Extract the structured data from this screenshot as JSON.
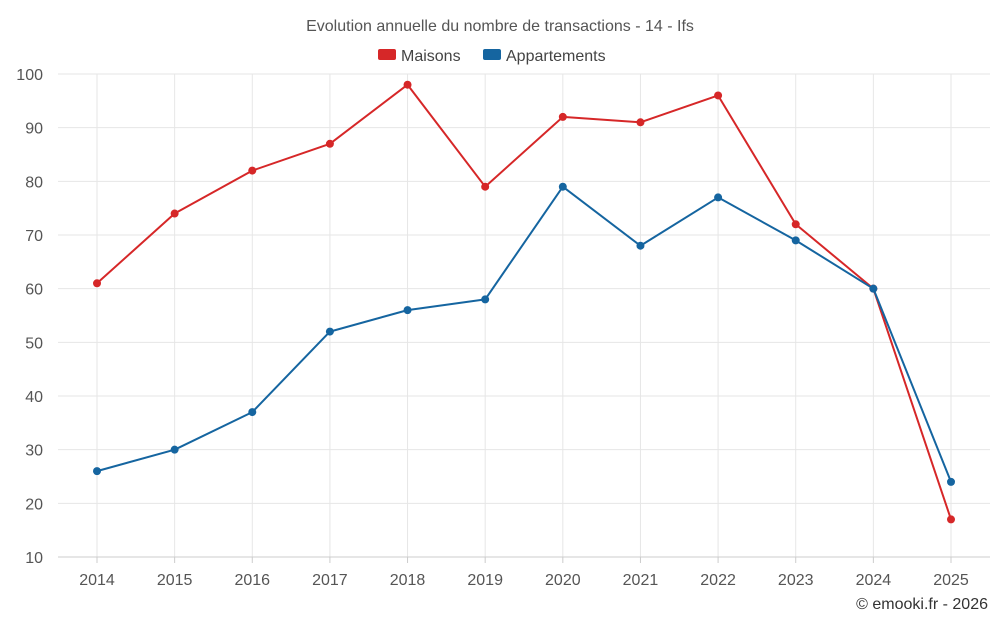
{
  "chart_data": {
    "type": "line",
    "title": "Evolution annuelle du nombre de transactions - 14 - Ifs",
    "categories": [
      "2014",
      "2015",
      "2016",
      "2017",
      "2018",
      "2019",
      "2020",
      "2021",
      "2022",
      "2023",
      "2024",
      "2025"
    ],
    "series": [
      {
        "name": "Maisons",
        "color": "#d62728",
        "values": [
          61,
          74,
          82,
          87,
          98,
          79,
          92,
          91,
          96,
          72,
          60,
          17
        ]
      },
      {
        "name": "Appartements",
        "color": "#1565a0",
        "values": [
          26,
          30,
          37,
          52,
          56,
          58,
          79,
          68,
          77,
          69,
          60,
          24
        ]
      }
    ],
    "ylim": [
      10,
      100
    ],
    "yticks": [
      10,
      20,
      30,
      40,
      50,
      60,
      70,
      80,
      90,
      100
    ],
    "xlabel": "",
    "ylabel": "",
    "grid": true,
    "legend_position": "top-center"
  },
  "credit": "© emooki.fr - 2026"
}
